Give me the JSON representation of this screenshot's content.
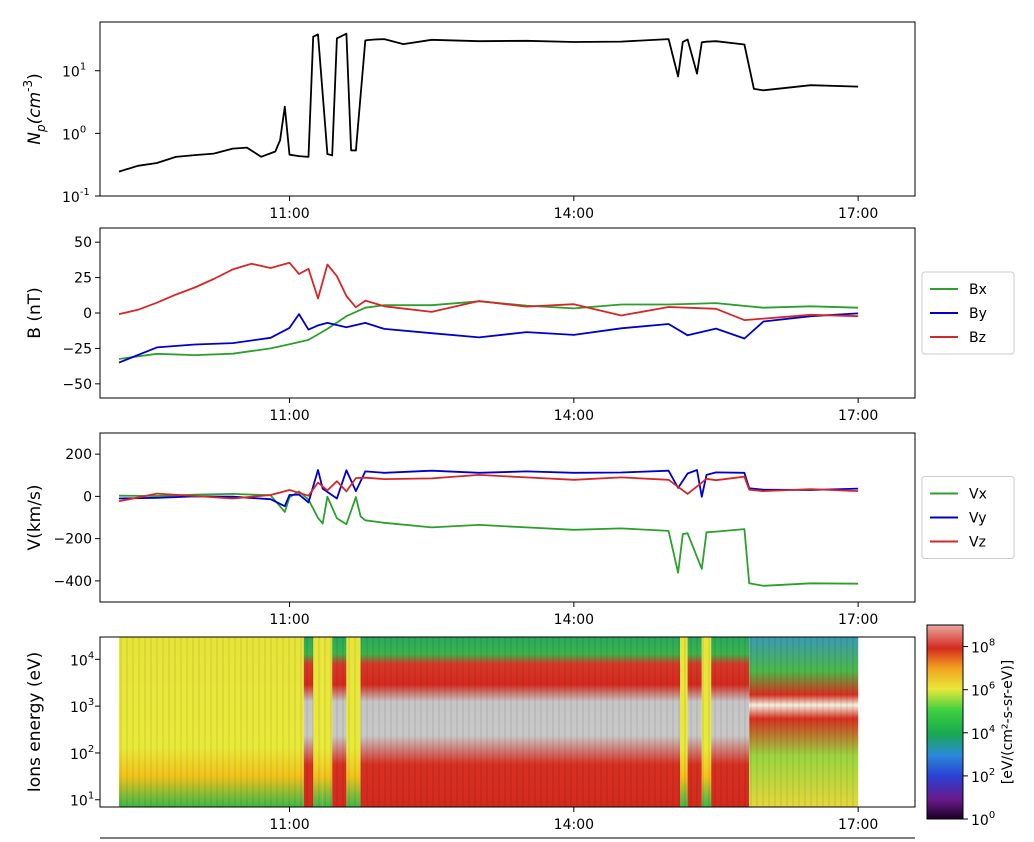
{
  "chart_data": [
    {
      "id": "density",
      "type": "line",
      "ylabel": "N_p(cm^-3)",
      "ylabel_main": "N",
      "ylabel_sub": "p",
      "ylabel_paren": "(cm",
      "ylabel_sup": "-3",
      "ylabel_close": ")",
      "yscale": "log",
      "ylim": [
        0.1,
        60
      ],
      "yticks": [
        {
          "value": 0.1,
          "base": "10",
          "exp": "-1"
        },
        {
          "value": 1,
          "base": "10",
          "exp": "0"
        },
        {
          "value": 10,
          "base": "10",
          "exp": "1"
        }
      ],
      "xlim": [
        9.0,
        17.6
      ],
      "xticks": [
        {
          "value": 11,
          "label": "11:00"
        },
        {
          "value": 14,
          "label": "14:00"
        },
        {
          "value": 17,
          "label": "17:00"
        }
      ],
      "series": [
        {
          "name": "Np",
          "color": "#000000",
          "x": [
            9.2,
            9.4,
            9.6,
            9.8,
            10.0,
            10.2,
            10.4,
            10.55,
            10.7,
            10.85,
            10.9,
            10.95,
            11.0,
            11.1,
            11.2,
            11.25,
            11.3,
            11.4,
            11.45,
            11.5,
            11.6,
            11.65,
            11.7,
            11.8,
            11.82,
            11.9,
            12.0,
            12.2,
            12.5,
            13.0,
            13.5,
            14.0,
            14.5,
            15.0,
            15.1,
            15.15,
            15.2,
            15.3,
            15.35,
            15.4,
            15.5,
            15.8,
            15.9,
            16.0,
            16.5,
            17.0
          ],
          "y": [
            0.23,
            0.3,
            0.35,
            0.4,
            0.45,
            0.5,
            0.55,
            0.6,
            0.45,
            0.5,
            0.8,
            2.5,
            0.45,
            0.45,
            0.4,
            35,
            40,
            0.45,
            0.45,
            35,
            38,
            0.55,
            0.5,
            30,
            32,
            30,
            32,
            28,
            30,
            30,
            32,
            28,
            30,
            30,
            8,
            30,
            30,
            9,
            30,
            28,
            30,
            28,
            5,
            5,
            5.5,
            5.5
          ]
        }
      ]
    },
    {
      "id": "bfield",
      "type": "line",
      "ylabel": "B (nT)",
      "yscale": "linear",
      "ylim": [
        -60,
        60
      ],
      "yticks": [
        {
          "value": 50,
          "label": "50"
        },
        {
          "value": 25,
          "label": "25"
        },
        {
          "value": 0,
          "label": "0"
        },
        {
          "value": -25,
          "label": "−25"
        },
        {
          "value": -50,
          "label": "−50"
        }
      ],
      "xlim": [
        9.0,
        17.6
      ],
      "xticks": [
        {
          "value": 11,
          "label": "11:00"
        },
        {
          "value": 14,
          "label": "14:00"
        },
        {
          "value": 17,
          "label": "17:00"
        }
      ],
      "legend_position": "right",
      "series": [
        {
          "name": "Bx",
          "color": "#2ca02c",
          "x": [
            9.2,
            9.6,
            10.0,
            10.4,
            10.8,
            11.0,
            11.2,
            11.4,
            11.6,
            11.8,
            12.0,
            12.5,
            13.0,
            13.5,
            14.0,
            14.5,
            15.0,
            15.5,
            16.0,
            16.5,
            17.0
          ],
          "y": [
            -32,
            -30,
            -30,
            -28,
            -26,
            -22,
            -18,
            -12,
            -2,
            5,
            5,
            6,
            7,
            5,
            4,
            5,
            6,
            8,
            3,
            5,
            5
          ]
        },
        {
          "name": "By",
          "color": "#0000cc",
          "x": [
            9.2,
            9.6,
            10.0,
            10.4,
            10.8,
            11.0,
            11.1,
            11.2,
            11.3,
            11.4,
            11.6,
            11.8,
            12.0,
            12.5,
            13.0,
            13.5,
            14.0,
            14.5,
            15.0,
            15.2,
            15.5,
            15.8,
            16.0,
            16.5,
            17.0
          ],
          "y": [
            -34,
            -25,
            -22,
            -20,
            -18,
            -10,
            -2,
            -12,
            -8,
            -8,
            -10,
            -6,
            -12,
            -14,
            -16,
            -14,
            -15,
            -12,
            -8,
            -15,
            -12,
            -18,
            -5,
            -3,
            0
          ]
        },
        {
          "name": "Bz",
          "color": "#d62728",
          "x": [
            9.2,
            9.4,
            9.6,
            9.8,
            10.0,
            10.2,
            10.4,
            10.6,
            10.8,
            11.0,
            11.1,
            11.2,
            11.3,
            11.4,
            11.5,
            11.6,
            11.7,
            11.8,
            12.0,
            12.5,
            13.0,
            13.5,
            14.0,
            14.5,
            15.0,
            15.5,
            15.8,
            16.0,
            16.5,
            17.0
          ],
          "y": [
            -2,
            2,
            8,
            12,
            18,
            25,
            30,
            35,
            33,
            35,
            28,
            30,
            10,
            35,
            25,
            12,
            5,
            8,
            5,
            2,
            8,
            5,
            5,
            -2,
            5,
            2,
            -5,
            -3,
            -2,
            -2
          ]
        }
      ]
    },
    {
      "id": "velocity",
      "type": "line",
      "ylabel": "V(km/s)",
      "yscale": "linear",
      "ylim": [
        -500,
        300
      ],
      "yticks": [
        {
          "value": 200,
          "label": "200"
        },
        {
          "value": 0,
          "label": "0"
        },
        {
          "value": -200,
          "label": "−200"
        },
        {
          "value": -400,
          "label": "−400"
        }
      ],
      "xlim": [
        9.0,
        17.6
      ],
      "xticks": [
        {
          "value": 11,
          "label": "11:00"
        },
        {
          "value": 14,
          "label": "14:00"
        },
        {
          "value": 17,
          "label": "17:00"
        }
      ],
      "legend_position": "right",
      "series": [
        {
          "name": "Vx",
          "color": "#2ca02c",
          "x": [
            9.2,
            9.6,
            10.0,
            10.4,
            10.8,
            10.95,
            11.0,
            11.1,
            11.2,
            11.3,
            11.35,
            11.4,
            11.5,
            11.6,
            11.7,
            11.75,
            11.8,
            12.0,
            12.5,
            13.0,
            13.5,
            14.0,
            14.5,
            15.0,
            15.1,
            15.15,
            15.2,
            15.35,
            15.4,
            15.5,
            15.8,
            15.85,
            16.0,
            16.5,
            17.0
          ],
          "y": [
            0,
            5,
            0,
            10,
            10,
            -80,
            -5,
            30,
            -20,
            -100,
            -120,
            -5,
            -100,
            -140,
            -5,
            -90,
            -120,
            -125,
            -140,
            -140,
            -145,
            -150,
            -155,
            -160,
            -370,
            -180,
            -170,
            -350,
            -170,
            -160,
            -160,
            -410,
            -415,
            -415,
            -410
          ]
        },
        {
          "name": "Vy",
          "color": "#0000cc",
          "x": [
            9.2,
            9.6,
            10.0,
            10.4,
            10.8,
            10.95,
            11.0,
            11.1,
            11.2,
            11.3,
            11.35,
            11.5,
            11.6,
            11.7,
            11.8,
            12.0,
            12.5,
            13.0,
            13.5,
            14.0,
            14.5,
            15.0,
            15.1,
            15.2,
            15.3,
            15.35,
            15.4,
            15.5,
            15.8,
            15.85,
            16.0,
            16.5,
            17.0
          ],
          "y": [
            -10,
            0,
            -5,
            0,
            -5,
            -50,
            10,
            0,
            -30,
            130,
            30,
            -10,
            130,
            20,
            120,
            120,
            118,
            115,
            110,
            110,
            118,
            115,
            40,
            115,
            120,
            0,
            110,
            110,
            115,
            30,
            30,
            35,
            30
          ]
        },
        {
          "name": "Vz",
          "color": "#d62728",
          "x": [
            9.2,
            9.6,
            10.0,
            10.4,
            10.8,
            11.0,
            11.2,
            11.3,
            11.4,
            11.5,
            11.6,
            11.7,
            11.8,
            12.0,
            12.5,
            13.0,
            13.5,
            14.0,
            14.5,
            15.0,
            15.2,
            15.4,
            15.5,
            15.8,
            15.85,
            16.0,
            16.5,
            17.0
          ],
          "y": [
            -20,
            5,
            0,
            -5,
            0,
            30,
            10,
            60,
            30,
            80,
            20,
            90,
            80,
            80,
            90,
            95,
            90,
            85,
            85,
            80,
            20,
            80,
            80,
            85,
            30,
            30,
            28,
            25
          ]
        }
      ]
    },
    {
      "id": "spectrogram",
      "type": "heatmap",
      "ylabel": "Ions energy (eV)",
      "yscale": "log",
      "ylim": [
        7,
        30000
      ],
      "yticks": [
        {
          "value": 10,
          "base": "10",
          "exp": "1"
        },
        {
          "value": 100,
          "base": "10",
          "exp": "2"
        },
        {
          "value": 1000,
          "base": "10",
          "exp": "3"
        },
        {
          "value": 10000,
          "base": "10",
          "exp": "4"
        }
      ],
      "xlim": [
        9.0,
        17.6
      ],
      "xticks": [
        {
          "value": 11,
          "label": "11:00"
        },
        {
          "value": 14,
          "label": "14:00"
        },
        {
          "value": 17,
          "label": "17:00"
        }
      ],
      "colorbar": {
        "label": "[eV/(cm²-s-sr-eV)]",
        "scale": "log",
        "range": [
          1,
          1000000000
        ],
        "ticks": [
          {
            "value": 1,
            "base": "10",
            "exp": "0"
          },
          {
            "value": 100,
            "base": "10",
            "exp": "2"
          },
          {
            "value": 10000,
            "base": "10",
            "exp": "4"
          },
          {
            "value": 1000000,
            "base": "10",
            "exp": "6"
          },
          {
            "value": 100000000,
            "base": "10",
            "exp": "8"
          }
        ]
      },
      "regions": [
        {
          "t0": 9.2,
          "t1": 11.15,
          "profile": "sheath"
        },
        {
          "t0": 11.15,
          "t1": 11.25,
          "profile": "sphere"
        },
        {
          "t0": 11.25,
          "t1": 11.35,
          "profile": "sheath"
        },
        {
          "t0": 11.35,
          "t1": 11.45,
          "profile": "sheath"
        },
        {
          "t0": 11.45,
          "t1": 11.6,
          "profile": "sphere"
        },
        {
          "t0": 11.6,
          "t1": 11.75,
          "profile": "sheath"
        },
        {
          "t0": 11.75,
          "t1": 15.12,
          "profile": "sphere"
        },
        {
          "t0": 15.12,
          "t1": 15.2,
          "profile": "sheath"
        },
        {
          "t0": 15.2,
          "t1": 15.35,
          "profile": "sphere"
        },
        {
          "t0": 15.35,
          "t1": 15.45,
          "profile": "sheath"
        },
        {
          "t0": 15.45,
          "t1": 15.85,
          "profile": "sphere"
        },
        {
          "t0": 15.85,
          "t1": 17.0,
          "profile": "lobe"
        }
      ]
    }
  ]
}
